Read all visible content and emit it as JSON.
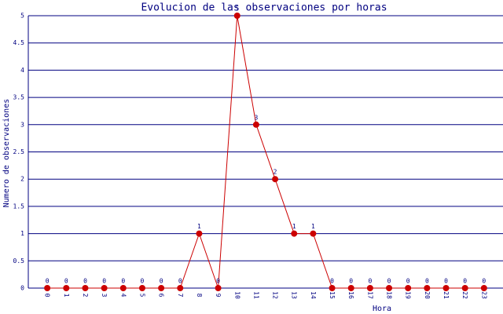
{
  "chart_data": {
    "type": "line",
    "title": "Evolucion de las observaciones por horas",
    "x_label": "Hora",
    "y_label": "Numero de observaciones",
    "categories": [
      "0",
      "1",
      "2",
      "3",
      "4",
      "5",
      "6",
      "7",
      "8",
      "9",
      "10",
      "11",
      "12",
      "13",
      "14",
      "15",
      "16",
      "17",
      "18",
      "19",
      "20",
      "21",
      "22",
      "23"
    ],
    "series": [
      {
        "name": "observaciones",
        "color": "#cc0000",
        "values": [
          0,
          0,
          0,
          0,
          0,
          0,
          0,
          0,
          1,
          0,
          5,
          3,
          2,
          1,
          1,
          0,
          0,
          0,
          0,
          0,
          0,
          0,
          0,
          0
        ]
      }
    ],
    "ylim": [
      0,
      5
    ],
    "yticks": [
      0,
      0.5,
      1,
      1.5,
      2,
      2.5,
      3,
      3.5,
      4,
      4.5,
      5
    ],
    "grid": true
  }
}
